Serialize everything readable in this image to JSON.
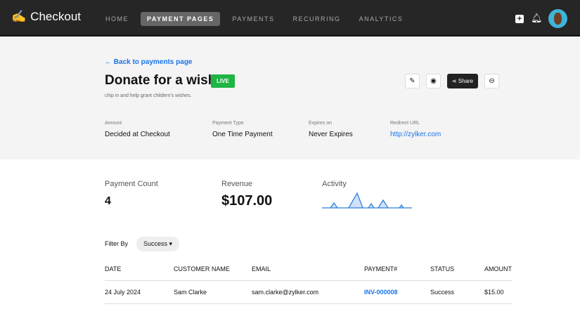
{
  "app": {
    "name": "Checkout"
  },
  "nav": {
    "items": [
      {
        "label": "HOME"
      },
      {
        "label": "PAYMENT PAGES",
        "active": true
      },
      {
        "label": "PAYMENTS"
      },
      {
        "label": "RECURRING"
      },
      {
        "label": "ANALYTICS"
      }
    ]
  },
  "page": {
    "back_label": "Back to payments page",
    "title": "Donate for a wish",
    "status": "LIVE",
    "description": "chip in and help grant childern's wishes.",
    "share_label": "Share"
  },
  "meta": [
    {
      "label": "Amount",
      "value": "Decided at Checkout"
    },
    {
      "label": "Payment Type",
      "value": "One Time Payment"
    },
    {
      "label": "Expires on",
      "value": "Never Expires"
    },
    {
      "label": "Redirect URL",
      "value": "http://zylker.com"
    }
  ],
  "stats": {
    "count_label": "Payment Count",
    "count": "4",
    "revenue_label": "Revenue",
    "revenue": "$107.00",
    "activity_label": "Activity"
  },
  "filter": {
    "label": "Filter By",
    "value": "Success"
  },
  "table": {
    "headers": [
      "DATE",
      "CUSTOMER NAME",
      "EMAIL",
      "PAYMENT#",
      "STATUS",
      "AMOUNT"
    ],
    "rows": [
      [
        "24 July 2024",
        "Sam Clarke",
        "sam.clarke@zylker.com",
        "INV-000008",
        "Success",
        "$15.00"
      ]
    ]
  },
  "colors": {
    "accent": "#1a73e8",
    "live": "#1db543",
    "topbar": "#262626"
  }
}
